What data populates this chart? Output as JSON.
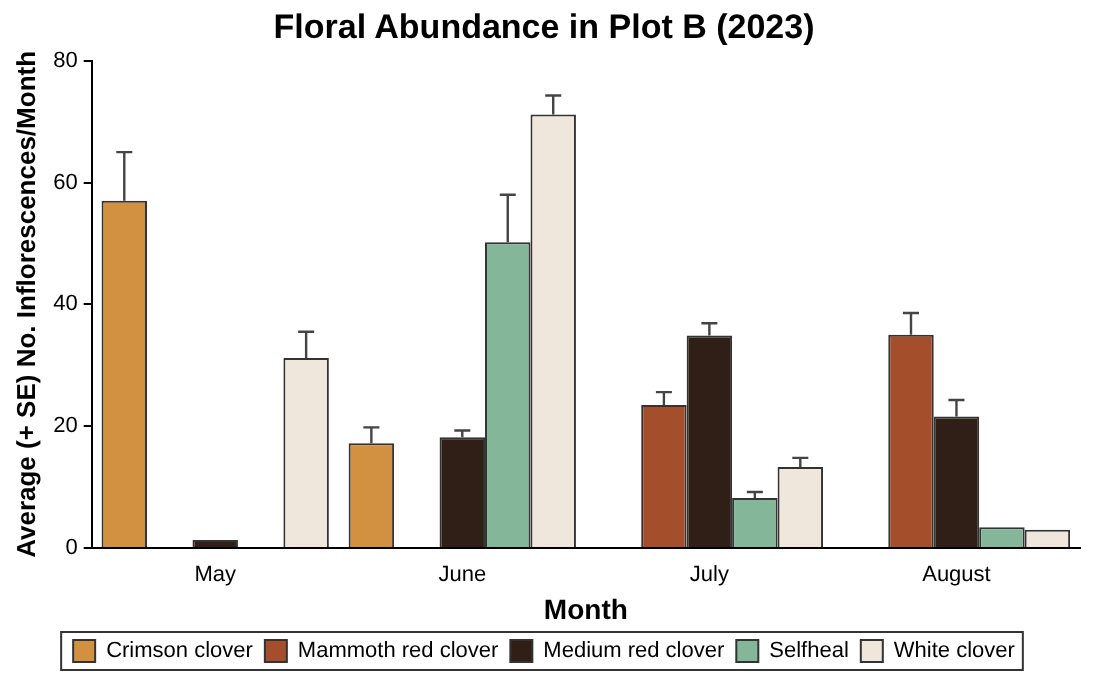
{
  "chart_data": {
    "type": "bar",
    "title": "Floral Abundance in Plot B (2023)",
    "xlabel": "Month",
    "ylabel": "Average (+ SE) No. Inflorescences/Month",
    "categories": [
      "May",
      "June",
      "July",
      "August"
    ],
    "series": [
      {
        "name": "Crimson clover",
        "color": "#d19140",
        "values": [
          57,
          17.2,
          0,
          0
        ],
        "errors": [
          [
            57,
            65
          ],
          [
            17.2,
            19.8
          ],
          null,
          null
        ]
      },
      {
        "name": "Mammoth red clover",
        "color": "#a54e2c",
        "values": [
          0,
          0,
          23.5,
          35
        ],
        "errors": [
          null,
          null,
          [
            23.5,
            25.6
          ],
          [
            35,
            38.6
          ]
        ]
      },
      {
        "name": "Medium red clover",
        "color": "#2f1f17",
        "values": [
          1.3,
          18.2,
          34.9,
          21.6
        ],
        "errors": [
          null,
          [
            18.2,
            19.3
          ],
          [
            34.9,
            36.9
          ],
          [
            21.6,
            24.3
          ]
        ]
      },
      {
        "name": "Selfheal",
        "color": "#84b79a",
        "values": [
          0,
          50.2,
          8.2,
          3.4
        ],
        "errors": [
          null,
          [
            50.2,
            58
          ],
          [
            8.2,
            9.2
          ],
          null
        ]
      },
      {
        "name": "White clover",
        "color": "#efe6dc",
        "values": [
          31.2,
          71.2,
          13.3,
          3
        ],
        "errors": [
          [
            31.2,
            35.5
          ],
          [
            71.2,
            74.3
          ],
          [
            13.3,
            14.8
          ],
          null
        ]
      }
    ],
    "ylim": [
      0,
      80
    ],
    "yticks": [
      0,
      20,
      40,
      60,
      80
    ],
    "grid": false,
    "legend": "bottom"
  }
}
